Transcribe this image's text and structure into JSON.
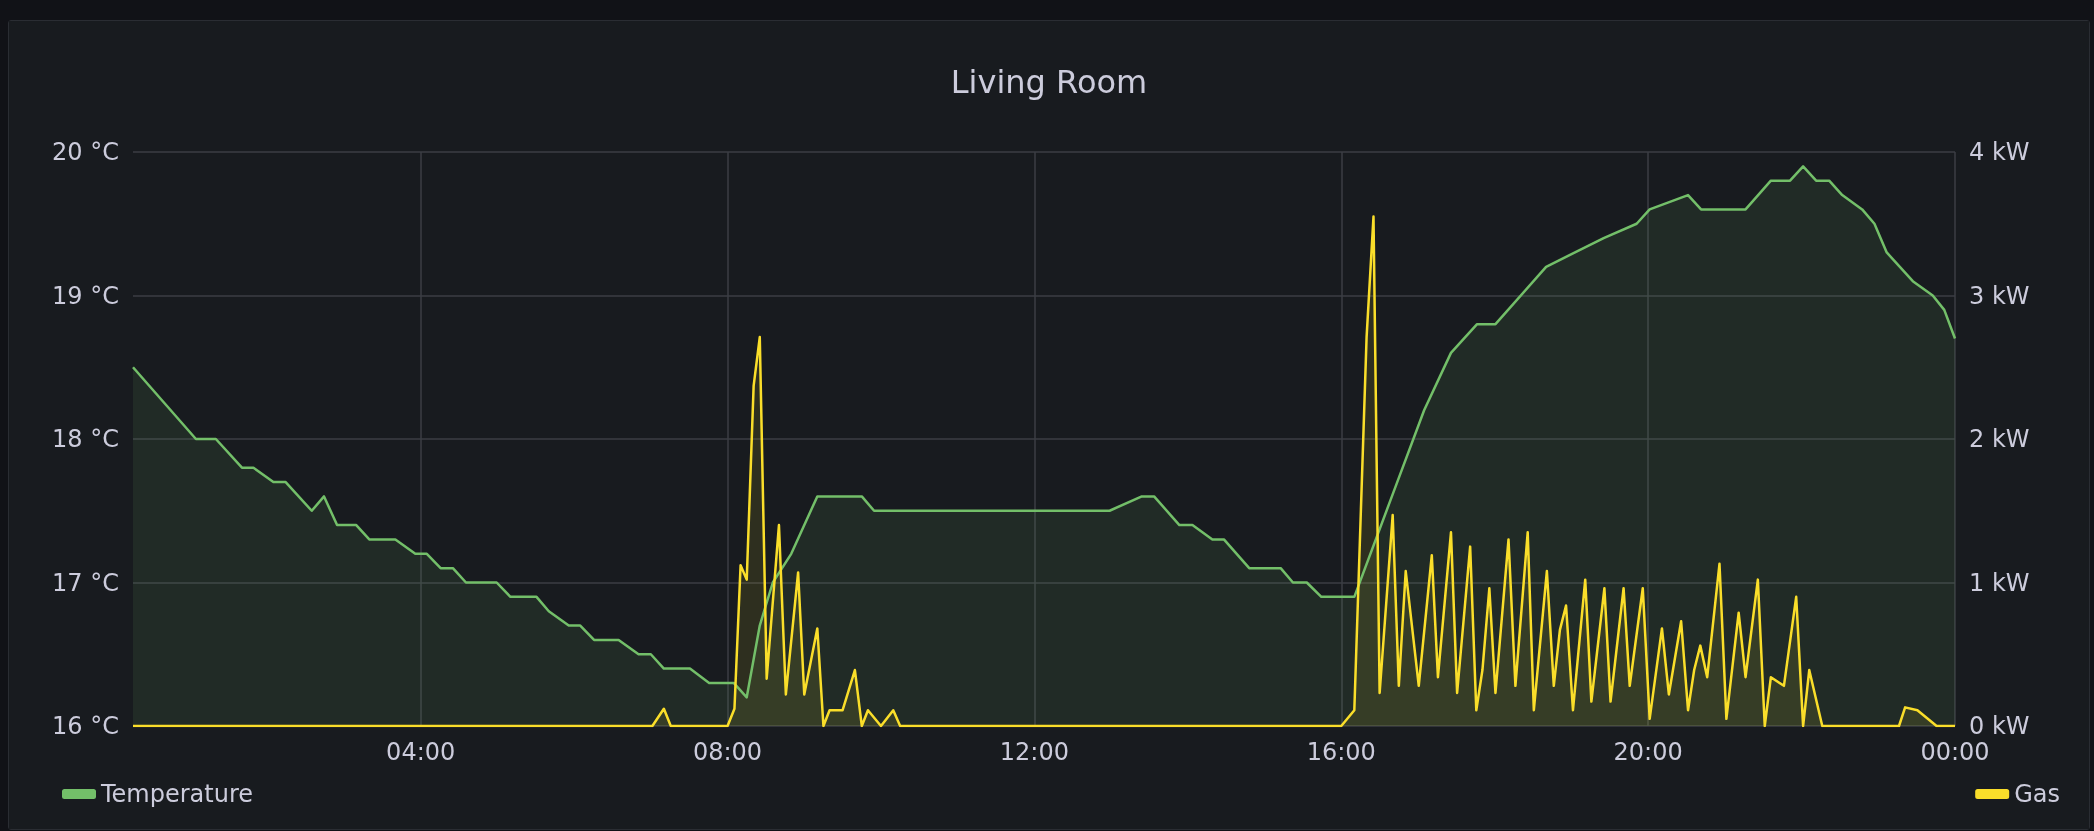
{
  "chart_data": {
    "type": "area",
    "title": "Living Room",
    "xlim": [
      0.25,
      24
    ],
    "xticks": [
      {
        "value": 4,
        "label": "04:00"
      },
      {
        "value": 8,
        "label": "08:00"
      },
      {
        "value": 12,
        "label": "12:00"
      },
      {
        "value": 16,
        "label": "16:00"
      },
      {
        "value": 20,
        "label": "20:00"
      },
      {
        "value": 24,
        "label": "00:00"
      }
    ],
    "ylim": [
      16,
      20
    ],
    "yticks": [
      {
        "value": 16,
        "label": "16 °C"
      },
      {
        "value": 17,
        "label": "17 °C"
      },
      {
        "value": 18,
        "label": "18 °C"
      },
      {
        "value": 19,
        "label": "19 °C"
      },
      {
        "value": 20,
        "label": "20 °C"
      }
    ],
    "y2lim": [
      0,
      4
    ],
    "y2ticks": [
      {
        "value": 0,
        "label": "0 kW"
      },
      {
        "value": 1,
        "label": "1 kW"
      },
      {
        "value": 2,
        "label": "2 kW"
      },
      {
        "value": 3,
        "label": "3 kW"
      },
      {
        "value": 4,
        "label": "4 kW"
      }
    ],
    "grid": true,
    "legend": "bottom",
    "marker": "none",
    "line_style": "solid",
    "series": [
      {
        "name": "Temperature",
        "color": "#73bf69",
        "x": [
          0.25,
          1.07,
          1.33,
          1.67,
          1.82,
          2.08,
          2.24,
          2.58,
          2.74,
          2.91,
          3.16,
          3.33,
          3.67,
          3.93,
          4.08,
          4.26,
          4.42,
          4.59,
          4.99,
          5.17,
          5.51,
          5.67,
          5.93,
          6.08,
          6.26,
          6.58,
          6.84,
          7.0,
          7.17,
          7.51,
          7.76,
          8.08,
          8.25,
          8.42,
          8.59,
          8.83,
          9.17,
          9.75,
          9.91,
          12.98,
          13.4,
          13.56,
          13.89,
          14.06,
          14.32,
          14.47,
          14.8,
          15.21,
          15.37,
          15.55,
          15.74,
          16.17,
          16.66,
          17.08,
          17.43,
          17.77,
          18.01,
          18.67,
          19.42,
          19.85,
          20.02,
          20.52,
          20.69,
          21.27,
          21.6,
          21.85,
          22.02,
          22.19,
          22.36,
          22.53,
          22.79,
          22.95,
          23.11,
          23.45,
          23.71,
          23.86,
          24.0
        ],
        "values": [
          18.5,
          18.0,
          18.0,
          17.8,
          17.8,
          17.7,
          17.7,
          17.5,
          17.6,
          17.4,
          17.4,
          17.3,
          17.3,
          17.2,
          17.2,
          17.1,
          17.1,
          17.0,
          17.0,
          16.9,
          16.9,
          16.8,
          16.7,
          16.7,
          16.6,
          16.6,
          16.5,
          16.5,
          16.4,
          16.4,
          16.3,
          16.3,
          16.2,
          16.7,
          17.0,
          17.2,
          17.6,
          17.6,
          17.5,
          17.5,
          17.6,
          17.6,
          17.4,
          17.4,
          17.3,
          17.3,
          17.1,
          17.1,
          17.0,
          17.0,
          16.9,
          16.9,
          17.6,
          18.2,
          18.6,
          18.8,
          18.8,
          19.2,
          19.4,
          19.5,
          19.6,
          19.7,
          19.6,
          19.6,
          19.8,
          19.8,
          19.9,
          19.8,
          19.8,
          19.7,
          19.6,
          19.5,
          19.3,
          19.1,
          19.0,
          18.9,
          18.7
        ]
      },
      {
        "name": "Gas",
        "color": "#fade2a",
        "axis": "y2",
        "x": [
          0.25,
          7.02,
          7.17,
          7.26,
          8.0,
          8.09,
          8.17,
          8.25,
          8.34,
          8.42,
          8.51,
          8.67,
          8.76,
          8.92,
          9.0,
          9.17,
          9.25,
          9.33,
          9.5,
          9.66,
          9.75,
          9.83,
          10.0,
          10.16,
          10.25,
          16.0,
          16.17,
          16.33,
          16.42,
          16.5,
          16.67,
          16.75,
          16.84,
          17.01,
          17.18,
          17.26,
          17.43,
          17.51,
          17.68,
          17.76,
          17.84,
          17.93,
          18.01,
          18.18,
          18.27,
          18.43,
          18.51,
          18.68,
          18.77,
          18.85,
          18.93,
          19.02,
          19.18,
          19.26,
          19.43,
          19.51,
          19.68,
          19.76,
          19.93,
          20.02,
          20.18,
          20.27,
          20.43,
          20.52,
          20.6,
          20.68,
          20.77,
          20.93,
          21.02,
          21.18,
          21.27,
          21.43,
          21.52,
          21.6,
          21.77,
          21.93,
          22.02,
          22.1,
          22.27,
          23.27,
          23.35,
          23.51,
          23.76,
          24.0
        ],
        "values": [
          0,
          0,
          0.12,
          0,
          0,
          0.12,
          1.12,
          1.02,
          2.37,
          2.71,
          0.33,
          1.4,
          0.22,
          1.07,
          0.22,
          0.68,
          0,
          0.11,
          0.11,
          0.39,
          0,
          0.11,
          0,
          0.11,
          0,
          0,
          0.11,
          2.71,
          3.55,
          0.23,
          1.47,
          0.28,
          1.08,
          0.28,
          1.19,
          0.34,
          1.35,
          0.23,
          1.25,
          0.11,
          0.39,
          0.96,
          0.23,
          1.3,
          0.28,
          1.35,
          0.11,
          1.08,
          0.28,
          0.67,
          0.84,
          0.11,
          1.02,
          0.17,
          0.96,
          0.17,
          0.96,
          0.28,
          0.96,
          0.05,
          0.68,
          0.22,
          0.73,
          0.11,
          0.39,
          0.56,
          0.34,
          1.13,
          0.05,
          0.79,
          0.34,
          1.02,
          0,
          0.34,
          0.28,
          0.9,
          0,
          0.39,
          0,
          0,
          0.13,
          0.11,
          0,
          0
        ]
      }
    ]
  }
}
